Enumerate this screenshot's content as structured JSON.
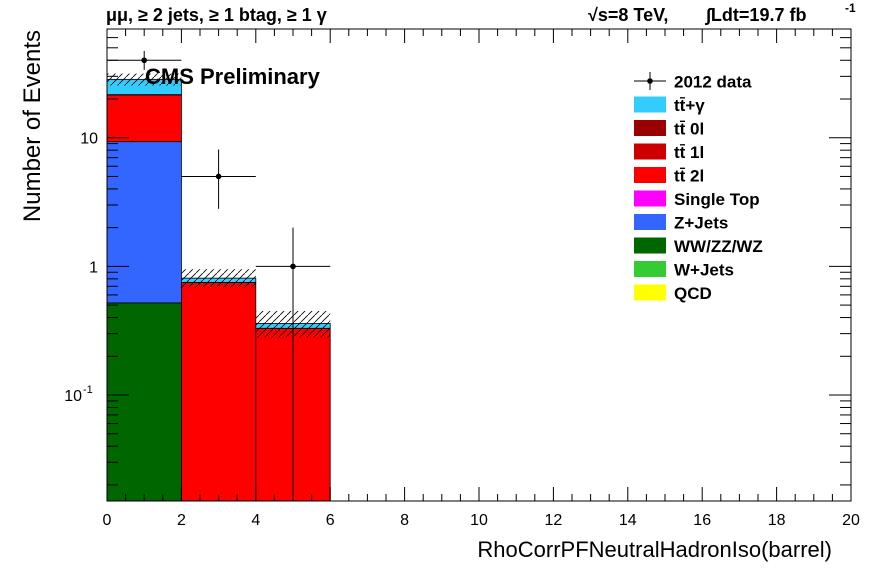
{
  "header": {
    "left": "μμ, ≥ 2 jets, ≥ 1 btag, ≥ 1 γ",
    "energy": "√s=8 TeV,",
    "lumi": "∫Ldt=19.7 fb",
    "lumi_exp": "-1"
  },
  "watermark": "CMS Preliminary",
  "chart_data": {
    "type": "bar",
    "ylabel": "Number of Events",
    "xlabel": "RhoCorrPFNeutralHadronIso(barrel)",
    "xlim": [
      0,
      20
    ],
    "ylim": [
      0.015,
      70
    ],
    "yscale": "log",
    "x_ticks": [
      "0",
      "2",
      "4",
      "6",
      "8",
      "10",
      "12",
      "14",
      "16",
      "18",
      "20"
    ],
    "y_ticks": [
      {
        "value": 0.1,
        "label": "10",
        "exp": "-1"
      },
      {
        "value": 1,
        "label": "1"
      },
      {
        "value": 10,
        "label": "10"
      }
    ],
    "bins": [
      [
        0,
        2
      ],
      [
        2,
        4
      ],
      [
        4,
        6
      ]
    ],
    "stack_order_bottom_to_top": [
      "QCD",
      "W+Jets",
      "WW/ZZ/WZ",
      "Z+Jets",
      "Single Top",
      "tt̄ 2l",
      "tt̄ 1l",
      "tt̄ 0l",
      "tt̄+γ"
    ],
    "series": [
      {
        "name": "QCD",
        "color": "#ffff00",
        "values": [
          0,
          0,
          0
        ]
      },
      {
        "name": "W+Jets",
        "color": "#33cc33",
        "values": [
          0,
          0,
          0
        ]
      },
      {
        "name": "WW/ZZ/WZ",
        "color": "#006600",
        "values": [
          0.52,
          0,
          0
        ]
      },
      {
        "name": "Z+Jets",
        "color": "#3366ff",
        "values": [
          8.8,
          0,
          0
        ]
      },
      {
        "name": "Single Top",
        "color": "#ff00ff",
        "values": [
          0,
          0,
          0
        ]
      },
      {
        "name": "tt̄ 2l",
        "color": "#ff0000",
        "values": [
          12.2,
          0.75,
          0.33
        ]
      },
      {
        "name": "tt̄ 1l",
        "color": "#cc0000",
        "values": [
          0.1,
          0,
          0
        ]
      },
      {
        "name": "tt̄ 0l",
        "color": "#990000",
        "values": [
          0,
          0,
          0
        ]
      },
      {
        "name": "tt̄+γ",
        "color": "#33ccff",
        "values": [
          6.8,
          0.06,
          0.03
        ]
      }
    ],
    "uncertainty_band": [
      {
        "low": 25.5,
        "high": 31.5
      },
      {
        "low": 0.68,
        "high": 0.95
      },
      {
        "low": 0.28,
        "high": 0.45
      }
    ],
    "data": {
      "name": "2012 data",
      "points": [
        {
          "x": 1,
          "y": 40,
          "ylow": 33.7,
          "yhigh": 47.3
        },
        {
          "x": 3,
          "y": 5,
          "ylow": 2.8,
          "yhigh": 8.1
        },
        {
          "x": 5,
          "y": 1,
          "ylow": 0.017,
          "yhigh": 2.0
        }
      ]
    },
    "legend_placement": "top-right",
    "legend": [
      {
        "label": "2012 data",
        "kind": "marker",
        "color": "#000000"
      },
      {
        "label": "tt̄+γ",
        "kind": "box",
        "color": "#33ccff"
      },
      {
        "label": "tt̄ 0l",
        "kind": "box",
        "color": "#990000"
      },
      {
        "label": "tt̄ 1l",
        "kind": "box",
        "color": "#cc0000"
      },
      {
        "label": "tt̄ 2l",
        "kind": "box",
        "color": "#ff0000"
      },
      {
        "label": "Single Top",
        "kind": "box",
        "color": "#ff00ff"
      },
      {
        "label": "Z+Jets",
        "kind": "box",
        "color": "#3366ff"
      },
      {
        "label": "WW/ZZ/WZ",
        "kind": "box",
        "color": "#006600"
      },
      {
        "label": "W+Jets",
        "kind": "box",
        "color": "#33cc33"
      },
      {
        "label": "QCD",
        "kind": "box",
        "color": "#ffff00"
      }
    ]
  }
}
